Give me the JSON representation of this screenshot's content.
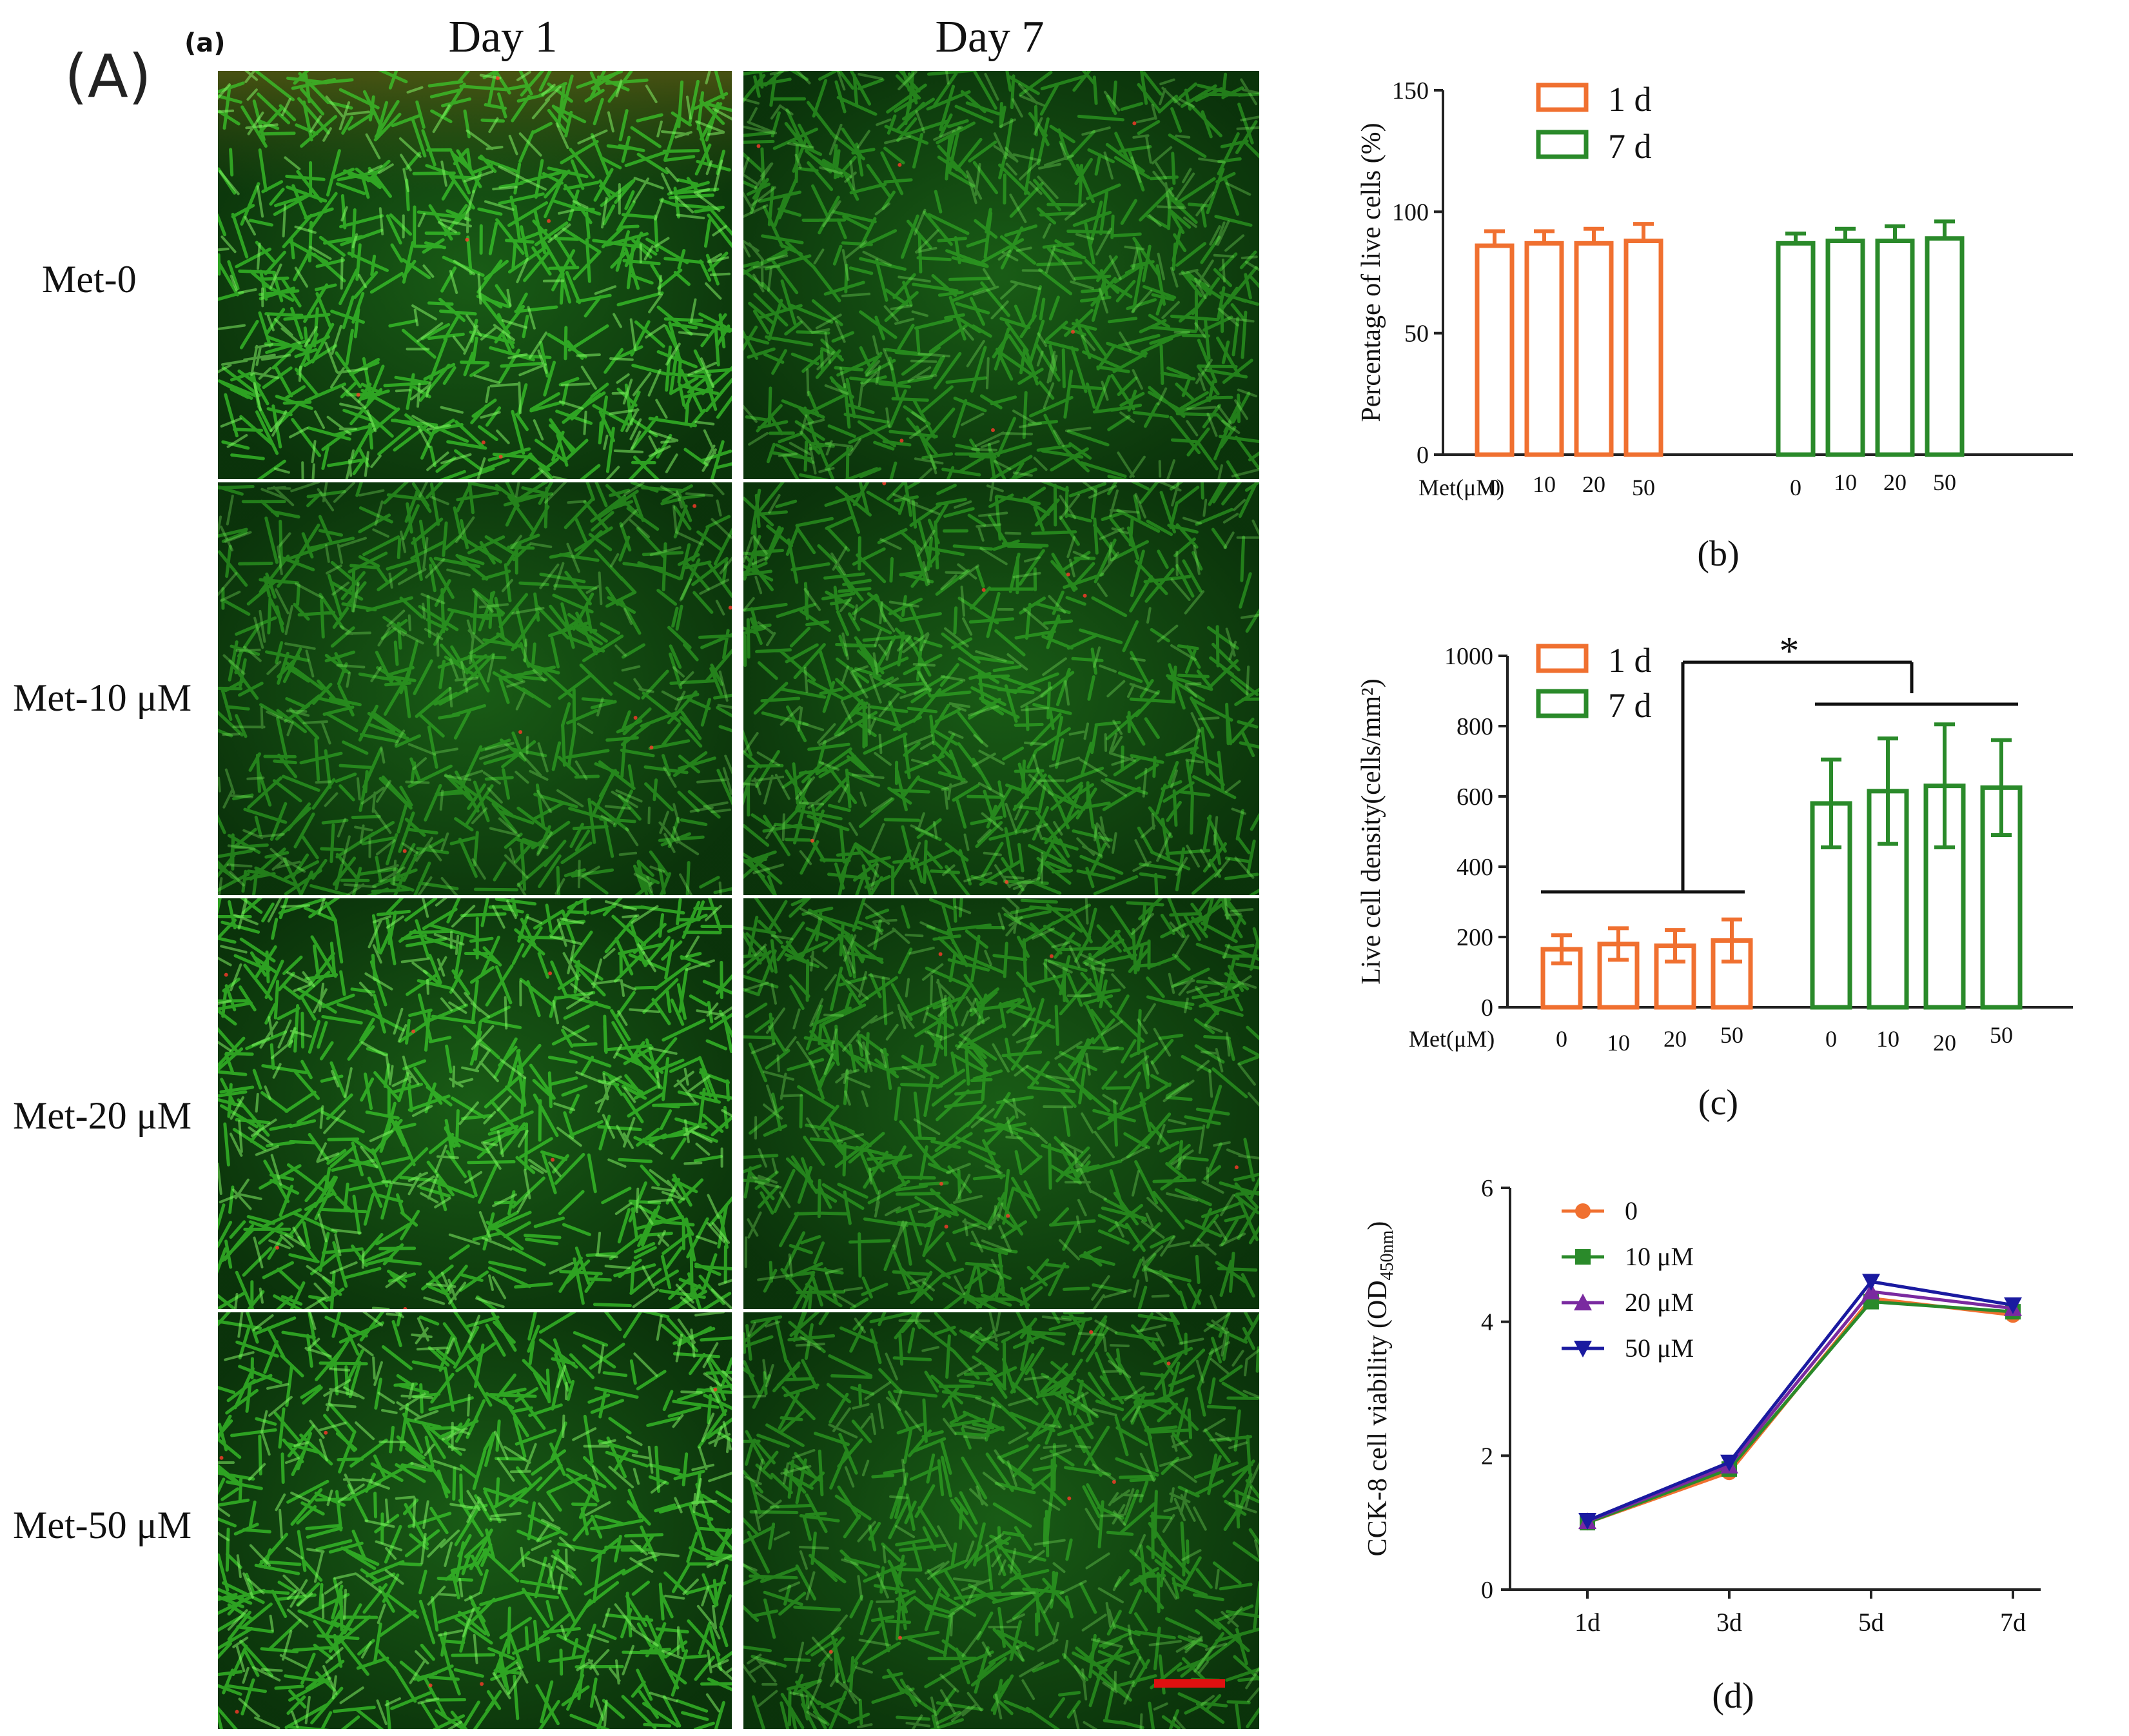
{
  "figure": {
    "label_A": "(A)",
    "label_a": "(a)",
    "col_headers": [
      "Day 1",
      "Day 7"
    ],
    "row_labels": [
      "Met-0",
      "Met-10 μM",
      "Met-20 μM",
      "Met-50 μM"
    ],
    "micro_description": "Fluorescence micrographs: green live cells with occasional red dead cells; scale bar in last panel",
    "colors": {
      "orange": "#f07030",
      "green": "#2a8a2a",
      "purple": "#7a2aa0",
      "blue": "#1a1aa0",
      "scale_bar": "#e01010",
      "micro_bg": "#0c3a0c",
      "micro_cell": "#3ccf2c",
      "micro_dead": "#ff3a2a"
    }
  },
  "chart_data": [
    {
      "id": "b",
      "type": "bar",
      "panel_label": "(b)",
      "ylabel": "Percentage of live cells (%)",
      "xaxis_prefix": "Met(μM)",
      "ylim": [
        0,
        150
      ],
      "yticks": [
        "0",
        "50",
        "100",
        "150"
      ],
      "categories": [
        "0",
        "10",
        "20",
        "50"
      ],
      "series": [
        {
          "name": "1 d",
          "color": "#f07030",
          "values": [
            86,
            87,
            87,
            88
          ],
          "errors": [
            6,
            5,
            6,
            7
          ]
        },
        {
          "name": "7 d",
          "color": "#2a8a2a",
          "values": [
            87,
            88,
            88,
            89
          ],
          "errors": [
            4,
            5,
            6,
            7
          ]
        }
      ]
    },
    {
      "id": "c",
      "type": "bar",
      "panel_label": "(c)",
      "ylabel": "Live cell density(cells/mm²)",
      "xaxis_prefix": "Met(μM)",
      "ylim": [
        0,
        1000
      ],
      "yticks": [
        "0",
        "200",
        "400",
        "600",
        "800",
        "1000"
      ],
      "categories": [
        "0",
        "10",
        "20",
        "50"
      ],
      "significance": "*",
      "series": [
        {
          "name": "1 d",
          "color": "#f07030",
          "values": [
            165,
            180,
            175,
            190
          ],
          "errors": [
            40,
            45,
            45,
            60
          ]
        },
        {
          "name": "7 d",
          "color": "#2a8a2a",
          "values": [
            580,
            615,
            630,
            625
          ],
          "errors": [
            125,
            150,
            175,
            135
          ]
        }
      ]
    },
    {
      "id": "d",
      "type": "line",
      "panel_label": "(d)",
      "ylabel": "CCK-8 cell viability (OD",
      "ylabel_sub": "450nm",
      "ylabel_end": ")",
      "ylim": [
        0,
        6
      ],
      "yticks": [
        "0",
        "2",
        "4",
        "6"
      ],
      "x": [
        "1d",
        "3d",
        "5d",
        "7d"
      ],
      "series": [
        {
          "name": "0",
          "color": "#f07030",
          "marker": "circle",
          "values": [
            1.0,
            1.75,
            4.35,
            4.1
          ]
        },
        {
          "name": "10 μM",
          "color": "#2a8a2a",
          "marker": "square",
          "values": [
            1.0,
            1.8,
            4.3,
            4.15
          ]
        },
        {
          "name": "20 μM",
          "color": "#7a2aa0",
          "marker": "triangle-up",
          "values": [
            1.02,
            1.85,
            4.45,
            4.2
          ]
        },
        {
          "name": "50 μM",
          "color": "#1a1aa0",
          "marker": "triangle-down",
          "values": [
            1.03,
            1.9,
            4.6,
            4.25
          ]
        }
      ]
    }
  ]
}
